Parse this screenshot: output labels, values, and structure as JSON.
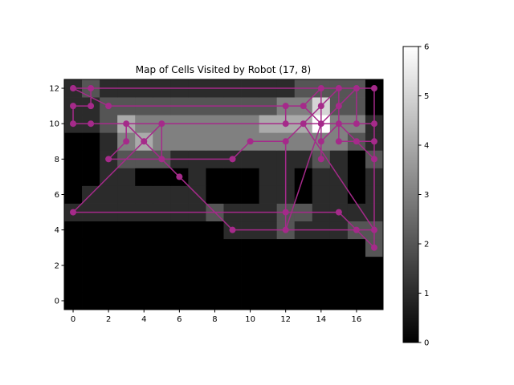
{
  "chart_data": {
    "type": "heatmap",
    "title": "Map of Cells Visited by Robot (17, 8)",
    "xlabel": "",
    "ylabel": "",
    "xlim": [
      -0.5,
      17.5
    ],
    "ylim": [
      -0.5,
      12.5
    ],
    "x_ticks": [
      0,
      2,
      4,
      6,
      8,
      10,
      12,
      14,
      16
    ],
    "y_ticks": [
      0,
      2,
      4,
      6,
      8,
      10,
      12
    ],
    "colorbar": {
      "min": 0,
      "max": 6,
      "ticks": [
        0,
        1,
        2,
        3,
        4,
        5,
        6
      ],
      "colormap": "gray"
    },
    "grid": false,
    "path_color": "#a52a8a",
    "visit_counts": [
      [
        0,
        0,
        0,
        0,
        0,
        0,
        0,
        0,
        0,
        0,
        0,
        0,
        0,
        0,
        0,
        0,
        0,
        0
      ],
      [
        0,
        0,
        0,
        0,
        0,
        0,
        0,
        0,
        0,
        0,
        0,
        0,
        0,
        0,
        0,
        0,
        0,
        0
      ],
      [
        0,
        0,
        0,
        0,
        0,
        0,
        0,
        0,
        0,
        0,
        0,
        0,
        0,
        0,
        0,
        0,
        0,
        0
      ],
      [
        0,
        0,
        0,
        0,
        0,
        0,
        0,
        0,
        0,
        0,
        0,
        0,
        0,
        0,
        0,
        0,
        0,
        2
      ],
      [
        0,
        0,
        0,
        0,
        0,
        0,
        0,
        0,
        0,
        1,
        1,
        1,
        2,
        1,
        1,
        1,
        2,
        2
      ],
      [
        1,
        1,
        1,
        1,
        1,
        1,
        1,
        1,
        2,
        1,
        1,
        1,
        2,
        2,
        1,
        1,
        1,
        1
      ],
      [
        0,
        1,
        1,
        1,
        1,
        1,
        1,
        1,
        0,
        0,
        0,
        1,
        1,
        0,
        1,
        1,
        0,
        1
      ],
      [
        0,
        0,
        1,
        1,
        0,
        0,
        0,
        1,
        0,
        0,
        0,
        1,
        1,
        0,
        1,
        1,
        0,
        1
      ],
      [
        0,
        0,
        1,
        2,
        2,
        2,
        1,
        1,
        1,
        1,
        1,
        1,
        1,
        1,
        2,
        1,
        0,
        2
      ],
      [
        0,
        0,
        1,
        3,
        4,
        3,
        3,
        3,
        3,
        3,
        3,
        3,
        3,
        3,
        3,
        3,
        2,
        1
      ],
      [
        1,
        1,
        2,
        4,
        3,
        3,
        3,
        3,
        3,
        3,
        3,
        4,
        4,
        4,
        6,
        3,
        3,
        1
      ],
      [
        1,
        1,
        2,
        2,
        2,
        2,
        2,
        2,
        2,
        2,
        2,
        2,
        3,
        3,
        5,
        2,
        2,
        0
      ],
      [
        1,
        2,
        1,
        1,
        1,
        1,
        1,
        1,
        1,
        1,
        1,
        1,
        1,
        2,
        2,
        2,
        2,
        0
      ]
    ],
    "path": [
      [
        0,
        12
      ],
      [
        1,
        12
      ],
      [
        1,
        11
      ],
      [
        0,
        11
      ],
      [
        0,
        10
      ],
      [
        1,
        10
      ],
      [
        13,
        10
      ],
      [
        14,
        10
      ],
      [
        14,
        12
      ],
      [
        13,
        11
      ],
      [
        12,
        11
      ],
      [
        2,
        11
      ],
      [
        0,
        12
      ],
      [
        17,
        12
      ],
      [
        17,
        9
      ],
      [
        16,
        9
      ],
      [
        15,
        10
      ],
      [
        14,
        10
      ],
      [
        15,
        11
      ],
      [
        16,
        12
      ],
      [
        16,
        10
      ],
      [
        15,
        10
      ],
      [
        15,
        9
      ],
      [
        16,
        9
      ],
      [
        17,
        8
      ],
      [
        17,
        3
      ],
      [
        16,
        4
      ],
      [
        15,
        5
      ],
      [
        0,
        5
      ],
      [
        5,
        10
      ],
      [
        5,
        8
      ],
      [
        4,
        9
      ],
      [
        3,
        10
      ],
      [
        3,
        9
      ],
      [
        2,
        8
      ],
      [
        9,
        8
      ],
      [
        10,
        9
      ],
      [
        12,
        9
      ],
      [
        14,
        11
      ],
      [
        15,
        12
      ],
      [
        15,
        10
      ],
      [
        14,
        9
      ],
      [
        14,
        8
      ],
      [
        14,
        10
      ],
      [
        12,
        4
      ],
      [
        12,
        9
      ],
      [
        13,
        10
      ],
      [
        17,
        4
      ],
      [
        9,
        4
      ],
      [
        6,
        7
      ],
      [
        3,
        10
      ],
      [
        14,
        10
      ],
      [
        13,
        11
      ],
      [
        12,
        11
      ],
      [
        12,
        10
      ],
      [
        17,
        10
      ],
      [
        17,
        4
      ],
      [
        12,
        4
      ],
      [
        12,
        5
      ],
      [
        0,
        5
      ],
      [
        5,
        10
      ],
      [
        4,
        9
      ]
    ]
  }
}
